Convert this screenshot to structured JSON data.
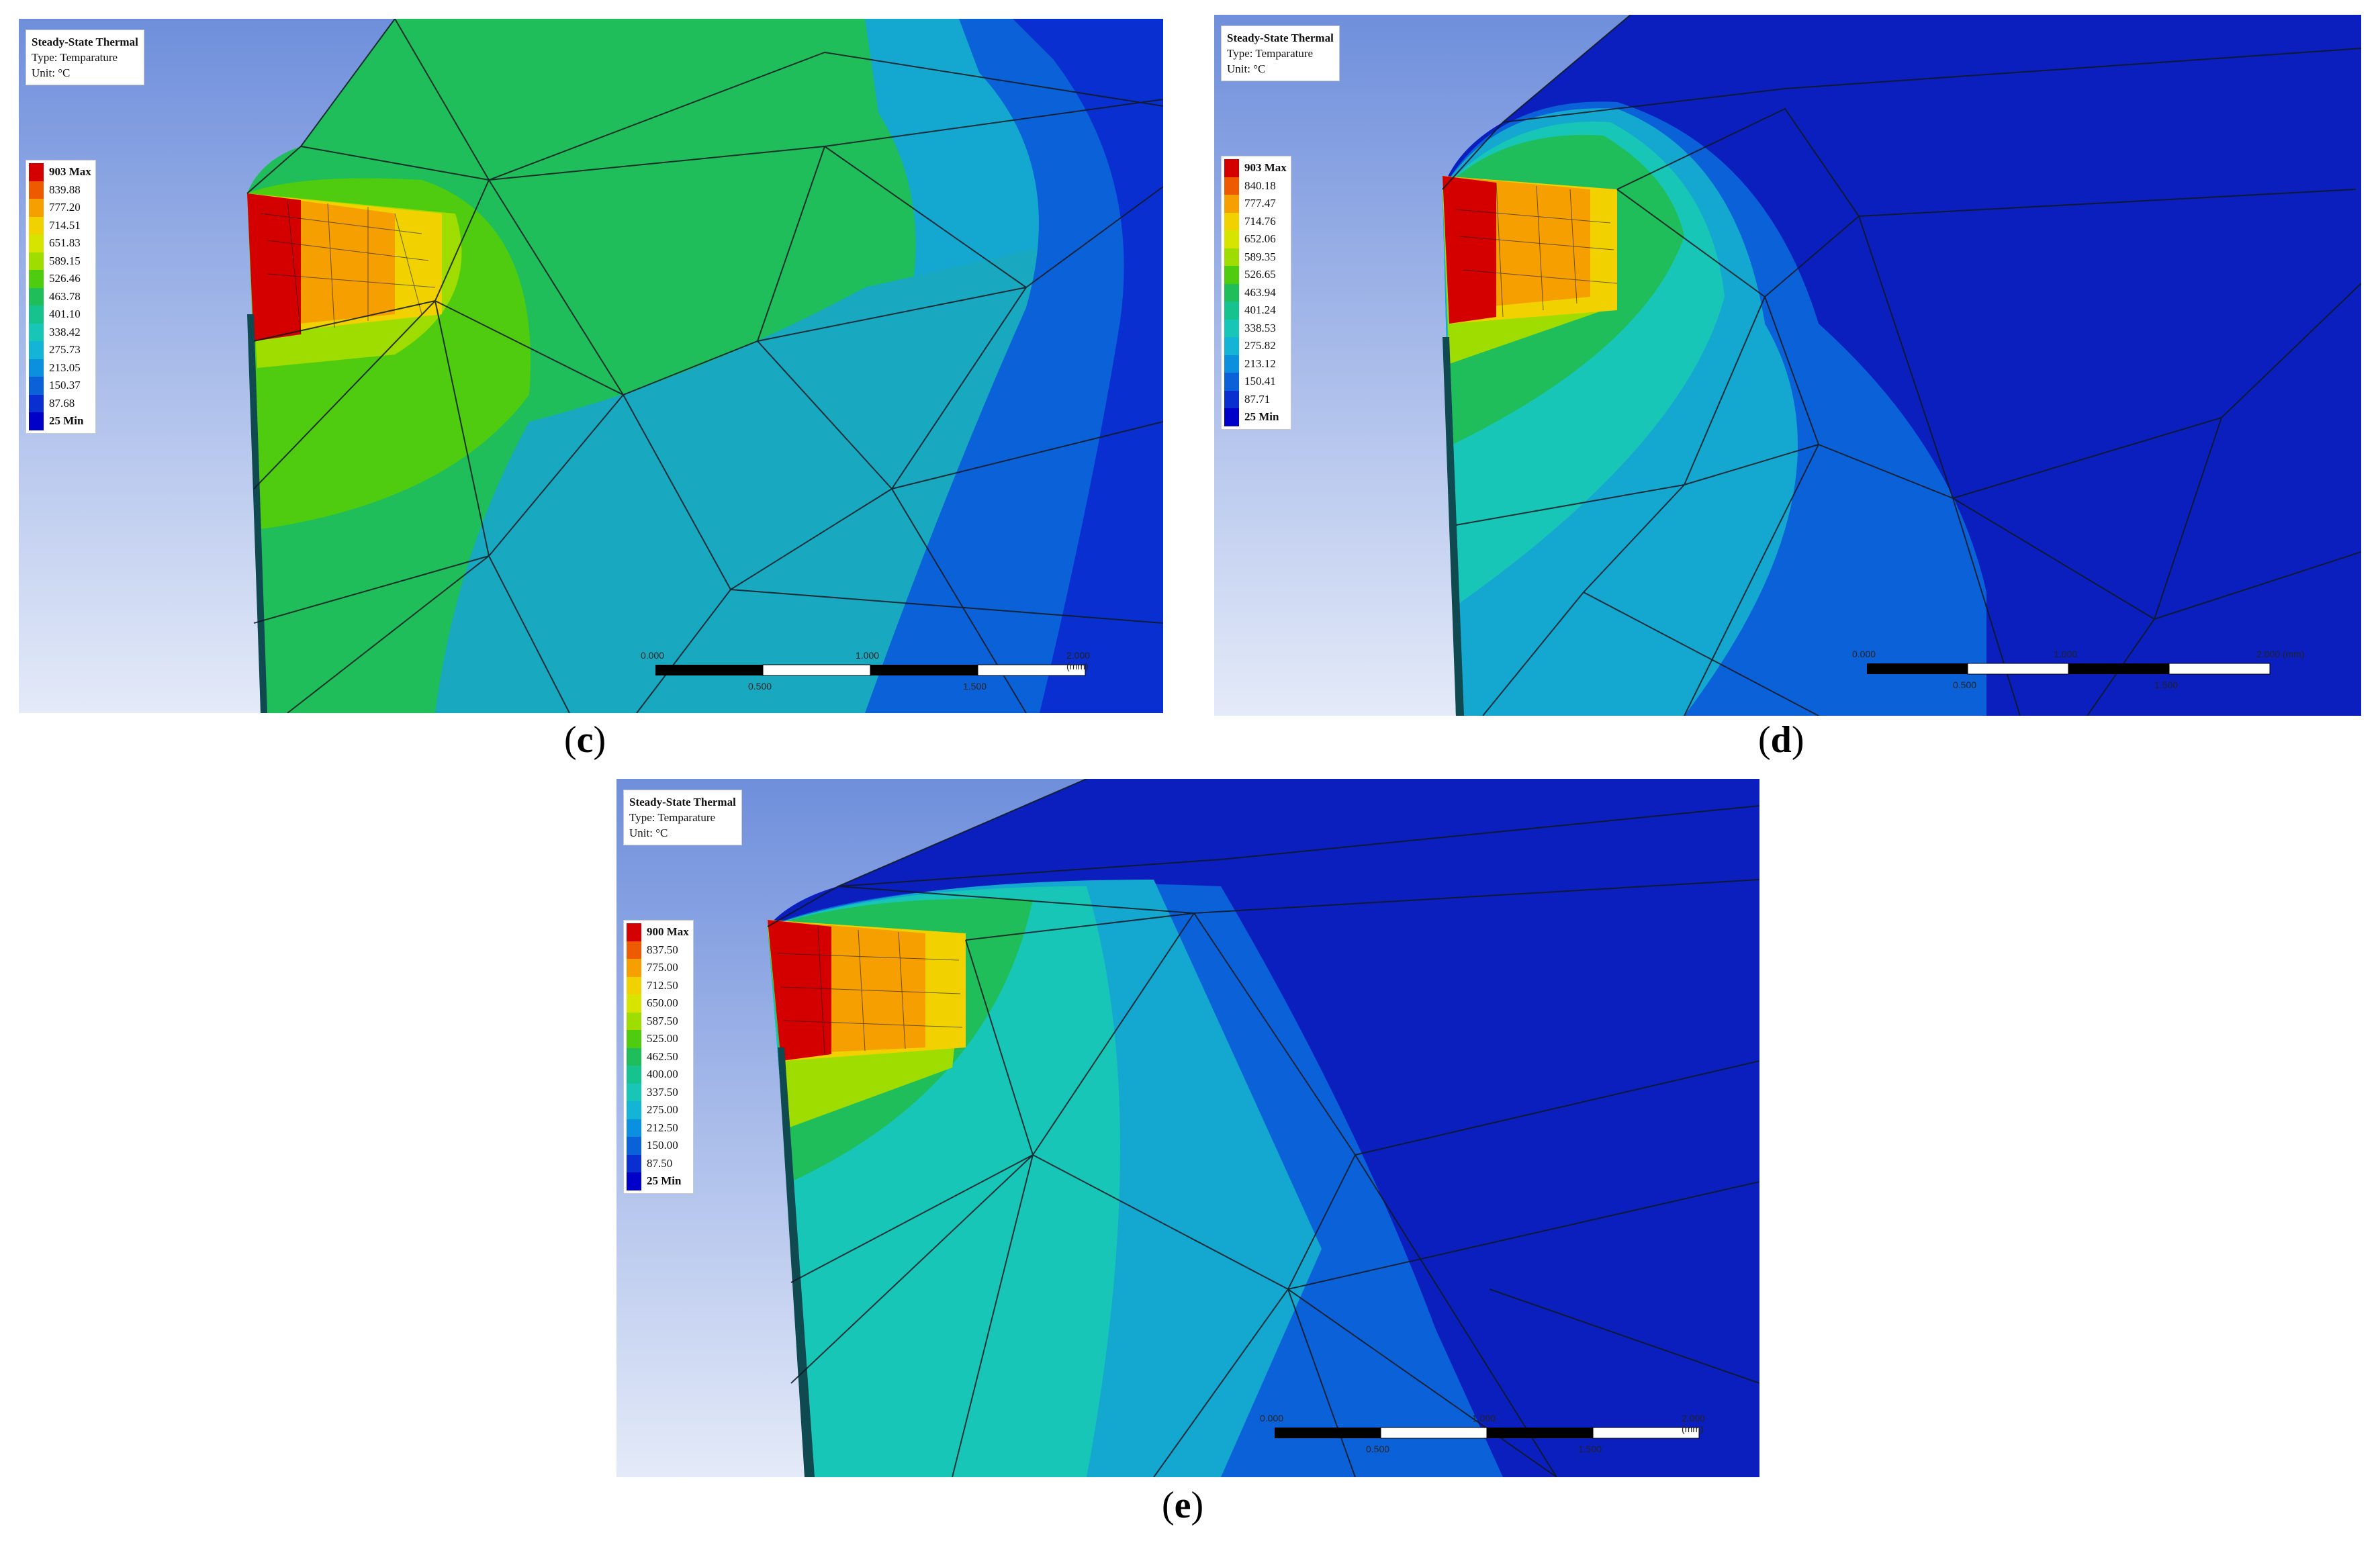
{
  "panels": [
    {
      "id": "c",
      "caption": "c",
      "info": {
        "title": "Steady-State Thermal",
        "type": "Type: Temparature",
        "unit": "Unit: °C"
      },
      "legend": [
        "903 Max",
        "839.88",
        "777.20",
        "714.51",
        "651.83",
        "589.15",
        "526.46",
        "463.78",
        "401.10",
        "338.42",
        "275.73",
        "213.05",
        "150.37",
        "87.68",
        "25 Min"
      ],
      "scale": {
        "ticks_top": [
          "0.000",
          "1.000",
          "2.000 (mm)"
        ],
        "ticks_bottom": [
          "0.500",
          "1.500"
        ]
      }
    },
    {
      "id": "d",
      "caption": "d",
      "info": {
        "title": "Steady-State Thermal",
        "type": "Type: Temparature",
        "unit": "Unit: °C"
      },
      "legend": [
        "903 Max",
        "840.18",
        "777.47",
        "714.76",
        "652.06",
        "589.35",
        "526.65",
        "463.94",
        "401.24",
        "338.53",
        "275.82",
        "213.12",
        "150.41",
        "87.71",
        "25 Min"
      ],
      "scale": {
        "ticks_top": [
          "0.000",
          "1.000",
          "2.000 (mm)"
        ],
        "ticks_bottom": [
          "0.500",
          "1.500"
        ]
      }
    },
    {
      "id": "e",
      "caption": "e",
      "info": {
        "title": "Steady-State Thermal",
        "type": "Type: Temparature",
        "unit": "Unit: °C"
      },
      "legend": [
        "900 Max",
        "837.50",
        "775.00",
        "712.50",
        "650.00",
        "587.50",
        "525.00",
        "462.50",
        "400.00",
        "337.50",
        "275.00",
        "212.50",
        "150.00",
        "87.50",
        "25 Min"
      ],
      "scale": {
        "ticks_top": [
          "0.000",
          "1.000",
          "2.000 (mm)"
        ],
        "ticks_bottom": [
          "0.500",
          "1.500"
        ]
      }
    }
  ],
  "legend_colors": [
    "#d40000",
    "#ee5a00",
    "#f5a000",
    "#f1d200",
    "#d7e400",
    "#9fdc00",
    "#4fcc10",
    "#1fbe5a",
    "#16c28e",
    "#18c6b8",
    "#14b4d6",
    "#0a90df",
    "#0b62d8",
    "#0a2fd0",
    "#0000c8"
  ],
  "field_colors": {
    "background_top": "#6f8fdc",
    "background_bottom": "#e4eaf8",
    "cold": "#0a1fbe",
    "mesh_line": "#101820"
  }
}
